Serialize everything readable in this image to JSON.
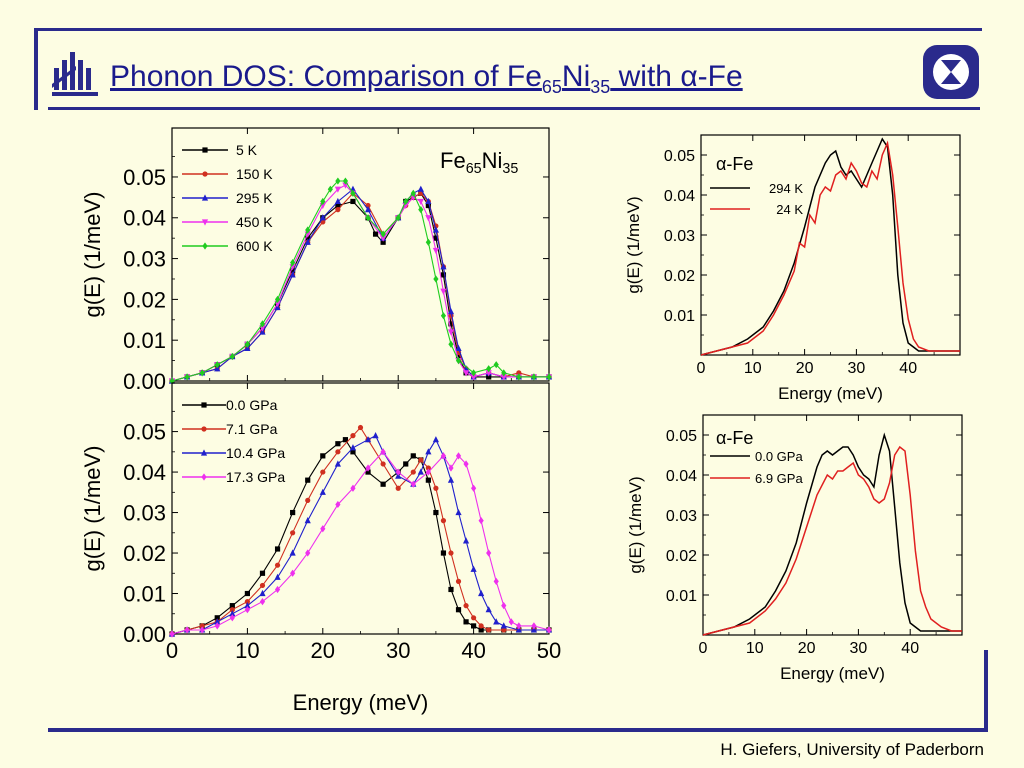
{
  "slide": {
    "title_main": "Phonon DOS: Comparison of Fe",
    "title_sub1": "65",
    "title_ni": "Ni",
    "title_sub2": "35",
    "title_tail": " with α-Fe",
    "footer": "H. Giefers, University of Paderborn",
    "colors": {
      "frame": "#2a2a8c",
      "background": "#fdfde3"
    }
  },
  "chart_data": [
    {
      "type": "line",
      "panel": "FeNi-temperature",
      "annotation": "Fe65Ni35",
      "ylabel": "g(E) (1/meV)",
      "xlim": [
        0,
        50
      ],
      "ylim": [
        0,
        0.062
      ],
      "yticks": [
        "0.00",
        "0.01",
        "0.02",
        "0.03",
        "0.04",
        "0.05"
      ],
      "legend": "top-left",
      "series": [
        {
          "name": "5 K",
          "color": "#000000",
          "marker": "square",
          "x": [
            0,
            2,
            4,
            6,
            8,
            10,
            12,
            14,
            16,
            18,
            20,
            22,
            24,
            26,
            27,
            28,
            30,
            31,
            32,
            33,
            34,
            35,
            36,
            37,
            38,
            39,
            40,
            42,
            44,
            46,
            48,
            50
          ],
          "y": [
            0,
            0.001,
            0.002,
            0.004,
            0.006,
            0.009,
            0.013,
            0.019,
            0.027,
            0.035,
            0.04,
            0.043,
            0.044,
            0.04,
            0.036,
            0.034,
            0.04,
            0.044,
            0.045,
            0.046,
            0.043,
            0.035,
            0.026,
            0.014,
            0.006,
            0.002,
            0.001,
            0.001,
            0.001,
            0.001,
            0.001,
            0.001
          ]
        },
        {
          "name": "150 K",
          "color": "#d03020",
          "marker": "circle",
          "x": [
            0,
            2,
            4,
            6,
            8,
            10,
            12,
            14,
            16,
            18,
            20,
            22,
            24,
            26,
            28,
            30,
            31,
            32,
            33,
            34,
            35,
            36,
            37,
            38,
            39,
            40,
            42,
            44,
            46,
            48,
            50
          ],
          "y": [
            0,
            0.001,
            0.002,
            0.003,
            0.006,
            0.008,
            0.012,
            0.018,
            0.026,
            0.034,
            0.039,
            0.042,
            0.046,
            0.043,
            0.036,
            0.04,
            0.043,
            0.045,
            0.046,
            0.044,
            0.038,
            0.028,
            0.016,
            0.007,
            0.003,
            0.001,
            0.002,
            0.001,
            0.002,
            0.001,
            0.001
          ]
        },
        {
          "name": "295 K",
          "color": "#2020cc",
          "marker": "triangle-up",
          "x": [
            0,
            2,
            4,
            6,
            8,
            10,
            12,
            14,
            16,
            18,
            20,
            22,
            24,
            26,
            28,
            30,
            31,
            32,
            33,
            34,
            35,
            36,
            37,
            38,
            39,
            40,
            42,
            44,
            46,
            48,
            50
          ],
          "y": [
            0,
            0.001,
            0.002,
            0.003,
            0.006,
            0.008,
            0.012,
            0.018,
            0.026,
            0.034,
            0.04,
            0.044,
            0.047,
            0.042,
            0.035,
            0.04,
            0.044,
            0.046,
            0.047,
            0.044,
            0.037,
            0.028,
            0.017,
            0.008,
            0.003,
            0.001,
            0.002,
            0.001,
            0.001,
            0.001,
            0.001
          ]
        },
        {
          "name": "450 K",
          "color": "#ee30ee",
          "marker": "triangle-down",
          "x": [
            0,
            2,
            4,
            6,
            8,
            10,
            12,
            14,
            16,
            18,
            20,
            22,
            23,
            24,
            26,
            28,
            30,
            31,
            32,
            33,
            34,
            35,
            36,
            37,
            38,
            39,
            40,
            42,
            44,
            46,
            48,
            50
          ],
          "y": [
            0,
            0.001,
            0.002,
            0.004,
            0.006,
            0.009,
            0.013,
            0.019,
            0.028,
            0.036,
            0.043,
            0.047,
            0.048,
            0.046,
            0.04,
            0.035,
            0.04,
            0.043,
            0.045,
            0.044,
            0.04,
            0.032,
            0.022,
            0.012,
            0.005,
            0.002,
            0.001,
            0.002,
            0.001,
            0.001,
            0.001,
            0.001
          ]
        },
        {
          "name": "600 K",
          "color": "#20cc20",
          "marker": "diamond",
          "x": [
            0,
            2,
            4,
            6,
            8,
            10,
            12,
            14,
            16,
            18,
            20,
            21,
            22,
            23,
            24,
            26,
            28,
            30,
            31,
            32,
            33,
            34,
            35,
            36,
            37,
            38,
            40,
            42,
            43,
            44,
            46,
            48,
            50
          ],
          "y": [
            0,
            0.001,
            0.002,
            0.004,
            0.006,
            0.009,
            0.014,
            0.02,
            0.029,
            0.037,
            0.044,
            0.047,
            0.049,
            0.049,
            0.046,
            0.04,
            0.036,
            0.04,
            0.044,
            0.046,
            0.042,
            0.034,
            0.025,
            0.016,
            0.009,
            0.005,
            0.002,
            0.003,
            0.004,
            0.002,
            0.001,
            0.001,
            0.001
          ]
        }
      ]
    },
    {
      "type": "line",
      "panel": "FeNi-pressure",
      "xlabel": "Energy (meV)",
      "ylabel": "g(E) (1/meV)",
      "xlim": [
        0,
        50
      ],
      "ylim": [
        0,
        0.062
      ],
      "xticks": [
        "0",
        "10",
        "20",
        "30",
        "40",
        "50"
      ],
      "yticks": [
        "0.00",
        "0.01",
        "0.02",
        "0.03",
        "0.04",
        "0.05"
      ],
      "legend": "top-left",
      "series": [
        {
          "name": "0.0 GPa",
          "color": "#000000",
          "marker": "square",
          "x": [
            0,
            2,
            4,
            6,
            8,
            10,
            12,
            14,
            16,
            18,
            20,
            22,
            23,
            24,
            26,
            28,
            30,
            31,
            32,
            33,
            34,
            35,
            36,
            37,
            38,
            39,
            40,
            41,
            42,
            44,
            46,
            48,
            50
          ],
          "y": [
            0,
            0.001,
            0.002,
            0.004,
            0.007,
            0.01,
            0.015,
            0.021,
            0.03,
            0.038,
            0.044,
            0.047,
            0.048,
            0.045,
            0.04,
            0.037,
            0.04,
            0.042,
            0.044,
            0.043,
            0.038,
            0.03,
            0.02,
            0.011,
            0.006,
            0.003,
            0.002,
            0.001,
            0.001,
            0.001,
            0.001,
            0.001,
            0.001
          ]
        },
        {
          "name": "7.1 GPa",
          "color": "#d03020",
          "marker": "circle",
          "x": [
            0,
            2,
            4,
            6,
            8,
            10,
            12,
            14,
            16,
            18,
            20,
            22,
            24,
            25,
            26,
            28,
            30,
            32,
            33,
            34,
            35,
            36,
            37,
            38,
            39,
            40,
            41,
            42,
            44,
            46,
            48,
            50
          ],
          "y": [
            0,
            0.001,
            0.002,
            0.003,
            0.006,
            0.008,
            0.012,
            0.017,
            0.025,
            0.033,
            0.04,
            0.045,
            0.049,
            0.051,
            0.048,
            0.042,
            0.036,
            0.04,
            0.043,
            0.041,
            0.036,
            0.028,
            0.02,
            0.013,
            0.007,
            0.004,
            0.002,
            0.001,
            0.001,
            0.001,
            0.001,
            0.001
          ]
        },
        {
          "name": "10.4 GPa",
          "color": "#2020cc",
          "marker": "triangle-up",
          "x": [
            0,
            2,
            4,
            6,
            8,
            10,
            12,
            14,
            16,
            18,
            20,
            22,
            24,
            26,
            27,
            28,
            30,
            32,
            33,
            34,
            35,
            36,
            37,
            38,
            39,
            40,
            41,
            42,
            43,
            44,
            46,
            48,
            50
          ],
          "y": [
            0,
            0.001,
            0.001,
            0.003,
            0.005,
            0.007,
            0.01,
            0.014,
            0.02,
            0.028,
            0.035,
            0.042,
            0.046,
            0.048,
            0.049,
            0.045,
            0.039,
            0.037,
            0.04,
            0.045,
            0.048,
            0.044,
            0.038,
            0.03,
            0.023,
            0.016,
            0.01,
            0.006,
            0.003,
            0.002,
            0.001,
            0.001,
            0.001
          ]
        },
        {
          "name": "17.3 GPa",
          "color": "#ee30ee",
          "marker": "diamond",
          "x": [
            0,
            2,
            4,
            6,
            8,
            10,
            12,
            14,
            16,
            18,
            20,
            22,
            24,
            26,
            28,
            30,
            32,
            34,
            36,
            37,
            38,
            39,
            40,
            41,
            42,
            43,
            44,
            45,
            46,
            48,
            50
          ],
          "y": [
            0,
            0.001,
            0.001,
            0.002,
            0.004,
            0.006,
            0.008,
            0.011,
            0.015,
            0.02,
            0.026,
            0.032,
            0.036,
            0.041,
            0.045,
            0.04,
            0.037,
            0.04,
            0.044,
            0.041,
            0.044,
            0.042,
            0.036,
            0.028,
            0.02,
            0.013,
            0.007,
            0.003,
            0.002,
            0.002,
            0.001
          ]
        }
      ]
    },
    {
      "type": "line",
      "panel": "alphaFe-temperature",
      "annotation": "α-Fe",
      "xlabel": "Energy (meV)",
      "ylabel": "g(E) (1/meV)",
      "xlim": [
        0,
        50
      ],
      "ylim": [
        0,
        0.055
      ],
      "xticks": [
        "0",
        "10",
        "20",
        "30",
        "40"
      ],
      "yticks": [
        "0.01",
        "0.02",
        "0.03",
        "0.04",
        "0.05"
      ],
      "legend": "top-left",
      "series": [
        {
          "name": "294 K",
          "color": "#000000",
          "x": [
            0,
            3,
            6,
            9,
            12,
            14,
            16,
            18,
            20,
            22,
            24,
            25,
            26,
            27,
            28,
            29,
            30,
            31,
            32,
            33,
            34,
            35,
            36,
            37,
            38,
            39,
            40,
            42,
            44,
            46,
            48,
            50
          ],
          "y": [
            0,
            0.001,
            0.002,
            0.004,
            0.007,
            0.011,
            0.016,
            0.023,
            0.032,
            0.042,
            0.048,
            0.05,
            0.051,
            0.047,
            0.045,
            0.046,
            0.044,
            0.042,
            0.045,
            0.048,
            0.051,
            0.054,
            0.052,
            0.04,
            0.02,
            0.008,
            0.003,
            0.001,
            0.001,
            0.001,
            0.001,
            0.001
          ]
        },
        {
          "name": "24 K",
          "color": "#e02020",
          "x": [
            0,
            3,
            6,
            9,
            12,
            14,
            16,
            17,
            18,
            19,
            20,
            21,
            22,
            23,
            24,
            25,
            26,
            27,
            28,
            29,
            30,
            31,
            32,
            33,
            34,
            35,
            36,
            37,
            38,
            39,
            40,
            41,
            42,
            44,
            46,
            48,
            50
          ],
          "y": [
            0,
            0.001,
            0.002,
            0.003,
            0.006,
            0.01,
            0.015,
            0.018,
            0.021,
            0.028,
            0.027,
            0.035,
            0.033,
            0.04,
            0.042,
            0.041,
            0.045,
            0.046,
            0.044,
            0.048,
            0.046,
            0.043,
            0.042,
            0.046,
            0.044,
            0.05,
            0.053,
            0.045,
            0.032,
            0.018,
            0.009,
            0.004,
            0.002,
            0.001,
            0.001,
            0.001,
            0.001
          ]
        }
      ]
    },
    {
      "type": "line",
      "panel": "alphaFe-pressure",
      "annotation": "α-Fe",
      "xlabel": "Energy (meV)",
      "ylabel": "g(E) (1/meV)",
      "xlim": [
        0,
        50
      ],
      "ylim": [
        0,
        0.055
      ],
      "xticks": [
        "0",
        "10",
        "20",
        "30",
        "40"
      ],
      "yticks": [
        "0.01",
        "0.02",
        "0.03",
        "0.04",
        "0.05"
      ],
      "legend": "top-left",
      "series": [
        {
          "name": "0.0 GPa",
          "color": "#000000",
          "x": [
            0,
            3,
            6,
            9,
            12,
            14,
            16,
            18,
            20,
            22,
            23,
            24,
            25,
            26,
            27,
            28,
            29,
            30,
            31,
            32,
            33,
            34,
            35,
            36,
            37,
            38,
            39,
            40,
            42,
            44,
            46,
            48,
            50
          ],
          "y": [
            0,
            0.001,
            0.002,
            0.004,
            0.007,
            0.011,
            0.016,
            0.023,
            0.033,
            0.042,
            0.045,
            0.046,
            0.045,
            0.046,
            0.047,
            0.047,
            0.045,
            0.042,
            0.04,
            0.039,
            0.037,
            0.045,
            0.05,
            0.046,
            0.032,
            0.018,
            0.008,
            0.003,
            0.001,
            0.001,
            0.001,
            0.001,
            0.001
          ]
        },
        {
          "name": "6.9 GPa",
          "color": "#e02020",
          "x": [
            0,
            3,
            6,
            9,
            12,
            14,
            16,
            18,
            20,
            22,
            24,
            25,
            26,
            27,
            28,
            29,
            30,
            31,
            32,
            33,
            34,
            35,
            36,
            37,
            38,
            39,
            40,
            41,
            42,
            43,
            44,
            46,
            48,
            50
          ],
          "y": [
            0,
            0.001,
            0.002,
            0.003,
            0.006,
            0.009,
            0.013,
            0.019,
            0.027,
            0.035,
            0.04,
            0.039,
            0.041,
            0.041,
            0.042,
            0.043,
            0.04,
            0.039,
            0.037,
            0.034,
            0.033,
            0.034,
            0.038,
            0.045,
            0.047,
            0.046,
            0.035,
            0.021,
            0.011,
            0.007,
            0.004,
            0.002,
            0.001,
            0.001
          ]
        }
      ]
    }
  ]
}
